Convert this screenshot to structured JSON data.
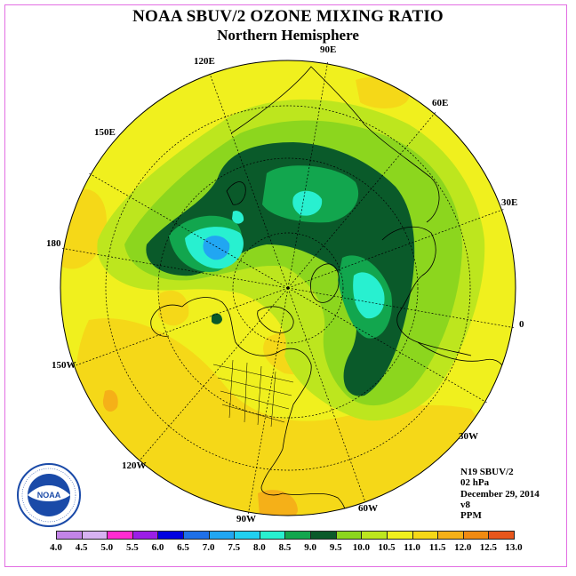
{
  "header": {
    "title": "NOAA SBUV/2 OZONE MIXING RATIO",
    "subtitle": "Northern Hemisphere"
  },
  "longitude_labels": [
    {
      "id": "90e",
      "text": "90E"
    },
    {
      "id": "60e",
      "text": "60E"
    },
    {
      "id": "30e",
      "text": "30E"
    },
    {
      "id": "0",
      "text": "0"
    },
    {
      "id": "30w",
      "text": "30W"
    },
    {
      "id": "60w",
      "text": "60W"
    },
    {
      "id": "90w",
      "text": "90W"
    },
    {
      "id": "120w",
      "text": "120W"
    },
    {
      "id": "150w",
      "text": "150W"
    },
    {
      "id": "180",
      "text": "180"
    },
    {
      "id": "150e",
      "text": "150E"
    },
    {
      "id": "120e",
      "text": "120E"
    }
  ],
  "info": {
    "satellite": "N19 SBUV/2",
    "level": "02 hPa",
    "date": "December 29, 2014",
    "version": "v8",
    "units": "PPM"
  },
  "logo": {
    "text": "NOAA",
    "ring_text": "NATIONAL OCEANIC AND ATMOSPHERIC ADMINISTRATION · U.S. DEPARTMENT OF COMMERCE"
  },
  "colorbar": {
    "labels": [
      "4.0",
      "4.5",
      "5.0",
      "5.5",
      "6.0",
      "6.5",
      "7.0",
      "7.5",
      "8.0",
      "8.5",
      "9.0",
      "9.5",
      "10.0",
      "10.5",
      "11.0",
      "11.5",
      "12.0",
      "12.5",
      "13.0"
    ],
    "colors": [
      "#c384e8",
      "#d7b2f2",
      "#ff2bd1",
      "#9b1fe6",
      "#0000e0",
      "#1f70e8",
      "#21a6f2",
      "#22d0f0",
      "#28f0d0",
      "#12a64e",
      "#0a7a38",
      "#0a5a2a",
      "#8cd61e",
      "#bde61e",
      "#e8f51e",
      "#f5d818",
      "#f5b018",
      "#f08a12",
      "#e8561c",
      "#e00010",
      "#8a4a2a"
    ],
    "band_colors": [
      "#c384e8",
      "#d7b2f2",
      "#ff2bd1",
      "#9b1fe6",
      "#0000e0",
      "#1f70e8",
      "#21a6f2",
      "#22d0f0",
      "#28f0d0",
      "#12a64e",
      "#0a5a2a",
      "#8cd61e",
      "#bde61e",
      "#f0f01e",
      "#f5d818",
      "#f5b018",
      "#f08a12",
      "#e8561c",
      "#e00010",
      "#8a4a2a"
    ]
  }
}
